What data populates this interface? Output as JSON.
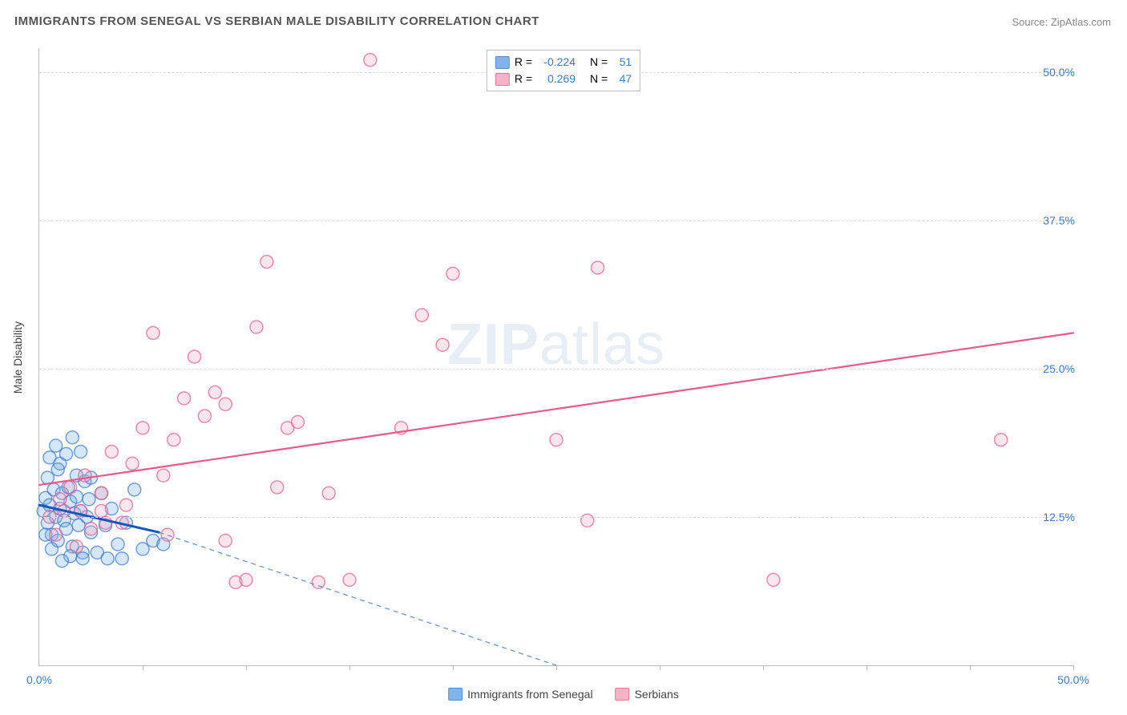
{
  "title": "IMMIGRANTS FROM SENEGAL VS SERBIAN MALE DISABILITY CORRELATION CHART",
  "source_label": "Source: ZipAtlas.com",
  "y_axis_title": "Male Disability",
  "watermark_bold": "ZIP",
  "watermark_rest": "atlas",
  "chart": {
    "type": "scatter",
    "background_color": "#ffffff",
    "grid_color": "#dddddd",
    "axis_color": "#bbbbbb",
    "text_color_value": "#3a7bd5",
    "text_color_label": "#666666",
    "xlim": [
      0,
      50
    ],
    "ylim": [
      0,
      52
    ],
    "x_ticks_minor": [
      5,
      10,
      15,
      20,
      25,
      30,
      35,
      40,
      45,
      50
    ],
    "x_axis_labels": [
      {
        "value": 0,
        "label": "0.0%"
      },
      {
        "value": 50,
        "label": "50.0%"
      }
    ],
    "y_axis_labels": [
      {
        "value": 12.5,
        "label": "12.5%"
      },
      {
        "value": 25.0,
        "label": "25.0%"
      },
      {
        "value": 37.5,
        "label": "37.5%"
      },
      {
        "value": 50.0,
        "label": "50.0%"
      }
    ],
    "marker_radius": 8,
    "marker_fill_opacity": 0.28,
    "marker_stroke_width": 1.5,
    "series": [
      {
        "id": "senegal",
        "label": "Immigrants from Senegal",
        "color": "#6aa8e8",
        "stroke": "#3a7bd5",
        "R": "-0.224",
        "N": "51",
        "regression": {
          "x1": 0,
          "y1": 13.5,
          "x2": 5.8,
          "y2": 11.2,
          "solid_color": "#1858b8",
          "solid_width": 3,
          "dash_x2": 25,
          "dash_y2": 0,
          "dash_color": "#5a8fd6",
          "dash_width": 1.2,
          "dash_pattern": "6,5"
        },
        "points": [
          [
            0.2,
            13.0
          ],
          [
            0.3,
            14.1
          ],
          [
            0.4,
            12.0
          ],
          [
            0.5,
            13.5
          ],
          [
            0.6,
            11.0
          ],
          [
            0.7,
            14.8
          ],
          [
            0.8,
            12.5
          ],
          [
            0.9,
            10.5
          ],
          [
            1.0,
            13.2
          ],
          [
            1.1,
            14.5
          ],
          [
            1.2,
            12.2
          ],
          [
            1.3,
            11.5
          ],
          [
            1.4,
            15.0
          ],
          [
            1.5,
            13.8
          ],
          [
            1.6,
            10.0
          ],
          [
            1.7,
            12.8
          ],
          [
            1.8,
            14.2
          ],
          [
            1.9,
            11.8
          ],
          [
            2.0,
            13.0
          ],
          [
            2.1,
            9.5
          ],
          [
            2.2,
            15.5
          ],
          [
            2.3,
            12.5
          ],
          [
            2.4,
            14.0
          ],
          [
            2.5,
            11.2
          ],
          [
            1.0,
            17.0
          ],
          [
            1.3,
            17.8
          ],
          [
            0.8,
            18.5
          ],
          [
            1.6,
            19.2
          ],
          [
            2.0,
            18.0
          ],
          [
            3.0,
            14.5
          ],
          [
            3.2,
            11.8
          ],
          [
            3.5,
            13.2
          ],
          [
            3.8,
            10.2
          ],
          [
            4.2,
            12.0
          ],
          [
            4.6,
            14.8
          ],
          [
            5.0,
            9.8
          ],
          [
            5.5,
            10.5
          ],
          [
            4.0,
            9.0
          ],
          [
            0.4,
            15.8
          ],
          [
            0.9,
            16.5
          ],
          [
            1.5,
            9.2
          ],
          [
            2.1,
            9.0
          ],
          [
            2.8,
            9.5
          ],
          [
            0.6,
            9.8
          ],
          [
            1.1,
            8.8
          ],
          [
            6.0,
            10.2
          ],
          [
            0.3,
            11.0
          ],
          [
            0.5,
            17.5
          ],
          [
            1.8,
            16.0
          ],
          [
            2.5,
            15.8
          ],
          [
            3.3,
            9.0
          ]
        ]
      },
      {
        "id": "serbians",
        "label": "Serbians",
        "color": "#f4a6bd",
        "stroke": "#e85a88",
        "R": "0.269",
        "N": "47",
        "regression": {
          "x1": 0,
          "y1": 15.2,
          "x2": 50,
          "y2": 28.0,
          "solid_color": "#e85a88",
          "solid_width": 2.2
        },
        "points": [
          [
            0.5,
            12.5
          ],
          [
            1.0,
            14.0
          ],
          [
            1.5,
            15.0
          ],
          [
            2.0,
            13.0
          ],
          [
            2.5,
            11.5
          ],
          [
            3.0,
            14.5
          ],
          [
            3.5,
            18.0
          ],
          [
            4.0,
            12.0
          ],
          [
            4.5,
            17.0
          ],
          [
            5.0,
            20.0
          ],
          [
            5.5,
            28.0
          ],
          [
            6.0,
            16.0
          ],
          [
            6.5,
            19.0
          ],
          [
            7.0,
            22.5
          ],
          [
            7.5,
            26.0
          ],
          [
            8.0,
            21.0
          ],
          [
            8.5,
            23.0
          ],
          [
            9.0,
            10.5
          ],
          [
            9.0,
            22.0
          ],
          [
            9.5,
            7.0
          ],
          [
            10.0,
            7.2
          ],
          [
            10.5,
            28.5
          ],
          [
            11.0,
            34.0
          ],
          [
            11.5,
            15.0
          ],
          [
            12.0,
            20.0
          ],
          [
            12.5,
            20.5
          ],
          [
            13.5,
            7.0
          ],
          [
            14.0,
            14.5
          ],
          [
            15.0,
            7.2
          ],
          [
            16.0,
            51.0
          ],
          [
            17.5,
            20.0
          ],
          [
            18.5,
            29.5
          ],
          [
            19.5,
            27.0
          ],
          [
            20.0,
            33.0
          ],
          [
            25.0,
            19.0
          ],
          [
            26.5,
            12.2
          ],
          [
            27.0,
            33.5
          ],
          [
            35.5,
            7.2
          ],
          [
            46.5,
            19.0
          ],
          [
            0.8,
            11.0
          ],
          [
            1.2,
            13.0
          ],
          [
            2.2,
            16.0
          ],
          [
            3.2,
            12.0
          ],
          [
            1.8,
            10.0
          ],
          [
            6.2,
            11.0
          ],
          [
            4.2,
            13.5
          ],
          [
            3.0,
            13.0
          ]
        ]
      }
    ]
  },
  "legend_top": {
    "R_label": "R =",
    "N_label": "N ="
  }
}
